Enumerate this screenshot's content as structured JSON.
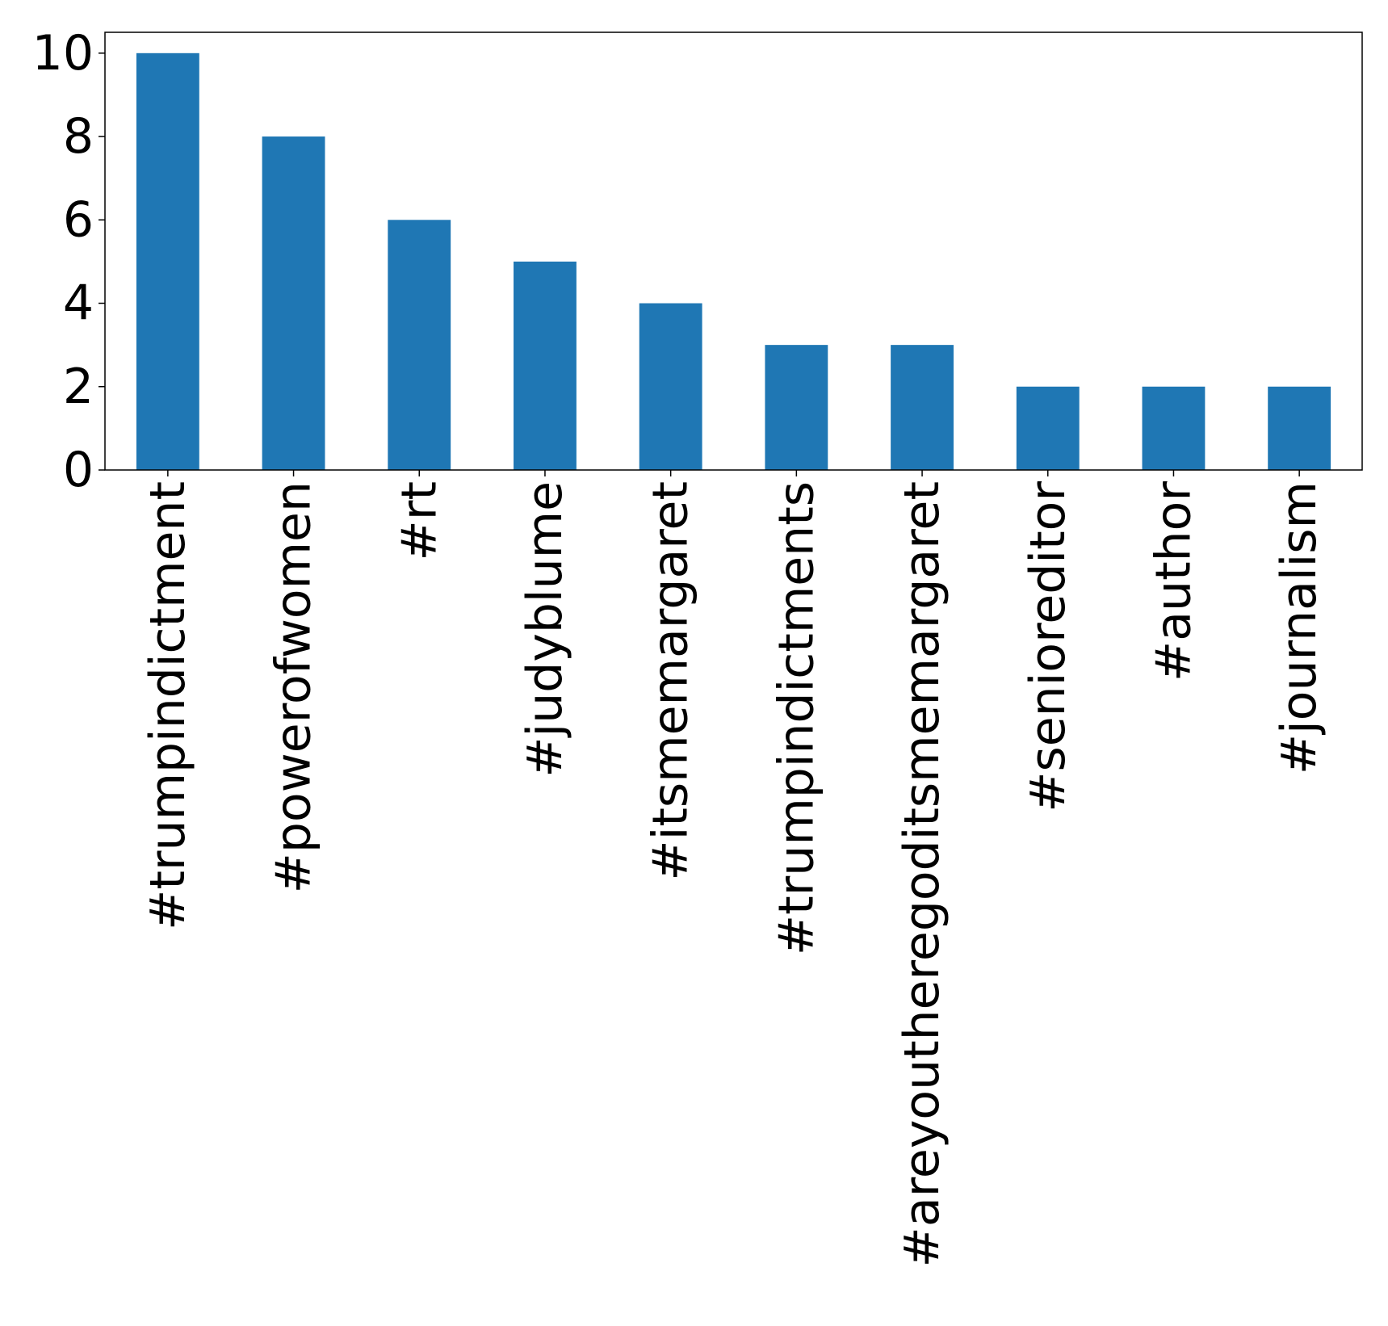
{
  "chart_data": {
    "type": "bar",
    "categories": [
      "#trumpindictment",
      "#powerofwomen",
      "#rt",
      "#judyblume",
      "#itsmemargaret",
      "#trumpindictments",
      "#areyoutheregoditsmemargaret",
      "#senioreditor",
      "#author",
      "#journalism"
    ],
    "values": [
      10,
      8,
      6,
      5,
      4,
      3,
      3,
      2,
      2,
      2
    ],
    "title": "",
    "xlabel": "",
    "ylabel": "",
    "ylim": [
      0,
      10.5
    ],
    "yticks": [
      0,
      2,
      4,
      6,
      8,
      10
    ],
    "bar_color": "#1f77b4",
    "grid": false,
    "legend": "none"
  }
}
